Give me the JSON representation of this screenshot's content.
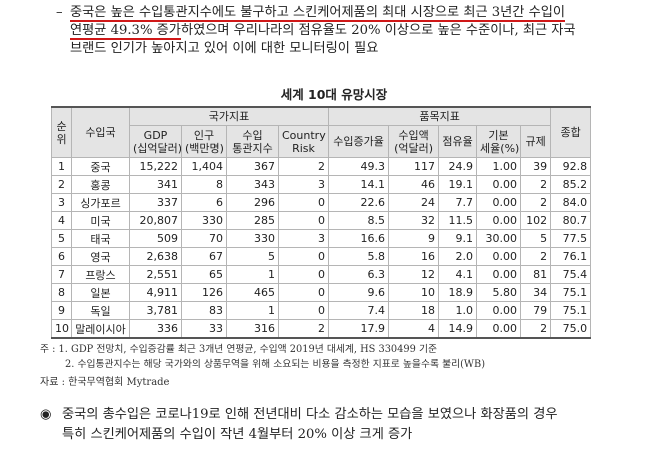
{
  "intro": {
    "dash": "–",
    "line1": "중국은 높은 수입통관지수에도 불구하고 스킨케어제품의 최대 시장으로 최근 3년간 수입이",
    "line2_underlined": "연평균 49.3% 증가",
    "line2_rest": "하였으며 우리나라의 점유율도 20% 이상으로 높은 수준이나, 최근 자국",
    "line3": "브랜드 인기가 높아지고 있어 이에 대한 모니터링이 필요"
  },
  "table": {
    "title": "세계 10대 유망시장",
    "header_rank": "순위",
    "header_country": "수입국",
    "group_national": "국가지표",
    "group_item": "품목지표",
    "header_total": "종합",
    "sub_gdp": [
      "GDP",
      "(십억달러)"
    ],
    "sub_pop": [
      "인구",
      "(백만명)"
    ],
    "sub_customs": [
      "수입",
      "통관지수"
    ],
    "sub_risk": [
      "Country",
      "Risk"
    ],
    "sub_growth": "수입증가율",
    "sub_import": [
      "수입액",
      "(억달러)"
    ],
    "sub_share": "점유율",
    "sub_tariff": [
      "기본",
      "세율(%)"
    ],
    "sub_reg": "규제",
    "rows": [
      {
        "rank": "1",
        "country": "중국",
        "gdp": "15,222",
        "pop": "1,404",
        "customs": "367",
        "risk": "2",
        "growth": "49.3",
        "import": "117",
        "share": "24.9",
        "tariff": "1.00",
        "reg": "39",
        "total": "92.8"
      },
      {
        "rank": "2",
        "country": "홍콩",
        "gdp": "341",
        "pop": "8",
        "customs": "343",
        "risk": "3",
        "growth": "14.1",
        "import": "46",
        "share": "19.1",
        "tariff": "0.00",
        "reg": "2",
        "total": "85.2"
      },
      {
        "rank": "3",
        "country": "싱가포르",
        "gdp": "337",
        "pop": "6",
        "customs": "296",
        "risk": "0",
        "growth": "22.6",
        "import": "24",
        "share": "7.7",
        "tariff": "0.00",
        "reg": "2",
        "total": "84.0"
      },
      {
        "rank": "4",
        "country": "미국",
        "gdp": "20,807",
        "pop": "330",
        "customs": "285",
        "risk": "0",
        "growth": "8.5",
        "import": "32",
        "share": "11.5",
        "tariff": "0.00",
        "reg": "102",
        "total": "80.7"
      },
      {
        "rank": "5",
        "country": "태국",
        "gdp": "509",
        "pop": "70",
        "customs": "330",
        "risk": "3",
        "growth": "16.6",
        "import": "9",
        "share": "9.1",
        "tariff": "30.00",
        "reg": "5",
        "total": "77.5"
      },
      {
        "rank": "6",
        "country": "영국",
        "gdp": "2,638",
        "pop": "67",
        "customs": "5",
        "risk": "0",
        "growth": "5.8",
        "import": "16",
        "share": "2.0",
        "tariff": "0.00",
        "reg": "2",
        "total": "76.1"
      },
      {
        "rank": "7",
        "country": "프랑스",
        "gdp": "2,551",
        "pop": "65",
        "customs": "1",
        "risk": "0",
        "growth": "6.3",
        "import": "12",
        "share": "4.1",
        "tariff": "0.00",
        "reg": "81",
        "total": "75.4"
      },
      {
        "rank": "8",
        "country": "일본",
        "gdp": "4,911",
        "pop": "126",
        "customs": "465",
        "risk": "0",
        "growth": "9.6",
        "import": "10",
        "share": "18.9",
        "tariff": "5.80",
        "reg": "34",
        "total": "75.1"
      },
      {
        "rank": "9",
        "country": "독일",
        "gdp": "3,781",
        "pop": "83",
        "customs": "1",
        "risk": "0",
        "growth": "7.4",
        "import": "18",
        "share": "1.0",
        "tariff": "0.00",
        "reg": "79",
        "total": "75.1"
      },
      {
        "rank": "10",
        "country": "말레이시아",
        "gdp": "336",
        "pop": "33",
        "customs": "316",
        "risk": "2",
        "growth": "17.9",
        "import": "4",
        "share": "14.9",
        "tariff": "0.00",
        "reg": "2",
        "total": "75.0"
      }
    ]
  },
  "notes": {
    "note1": "주 : 1. GDP 전망치, 수입증감률 최근 3개년 연평균, 수입액 2019년 대세계, HS 330499 기준",
    "note2": "2. 수입통관지수는 해당 국가와의 상품무역을 위해 소요되는 비용을 측정한 지표로 높을수록 불리(WB)",
    "source": "자료 : 한국무역협회 Mytrade"
  },
  "bullet": {
    "mark": "◉",
    "line1": "중국의 총수입은 코로나19로 인해 전년대비 다소 감소하는 모습을 보였으나 화장품의 경우",
    "line2": "특히 스킨케어제품의 수입이 작년 4월부터 20% 이상 크게 증가"
  }
}
